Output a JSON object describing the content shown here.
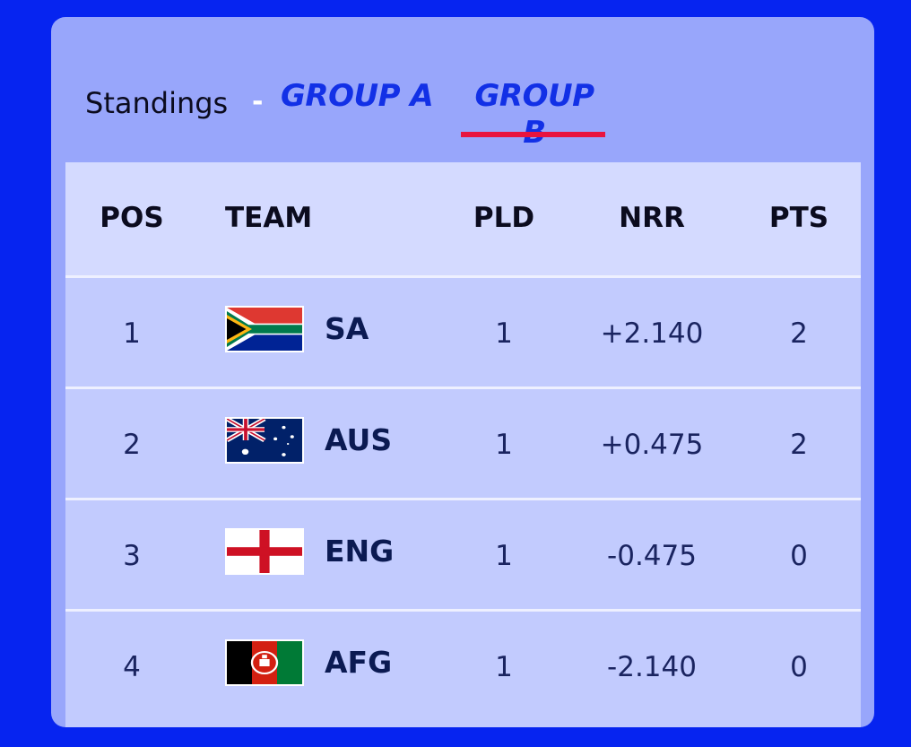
{
  "header": {
    "title": "Standings",
    "separator": "-",
    "tabs": [
      {
        "label": "GROUP A",
        "active": false
      },
      {
        "label": "GROUP B",
        "active": true
      }
    ]
  },
  "columns": [
    "POS",
    "TEAM",
    "PLD",
    "NRR",
    "PTS"
  ],
  "rows": [
    {
      "pos": "1",
      "team": "SA",
      "flag": "south-africa-flag",
      "pld": "1",
      "nrr": "+2.140",
      "pts": "2"
    },
    {
      "pos": "2",
      "team": "AUS",
      "flag": "australia-flag",
      "pld": "1",
      "nrr": "+0.475",
      "pts": "2"
    },
    {
      "pos": "3",
      "team": "ENG",
      "flag": "england-flag",
      "pld": "1",
      "nrr": "-0.475",
      "pts": "0"
    },
    {
      "pos": "4",
      "team": "AFG",
      "flag": "afghanistan-flag",
      "pld": "1",
      "nrr": "-2.140",
      "pts": "0"
    }
  ],
  "colors": {
    "background": "#0624f0",
    "card": "#98a6fb",
    "table_header": "#d4daff",
    "row": "#c2cbfe",
    "tab_text": "#1230e6",
    "active_underline": "#e8143f"
  }
}
